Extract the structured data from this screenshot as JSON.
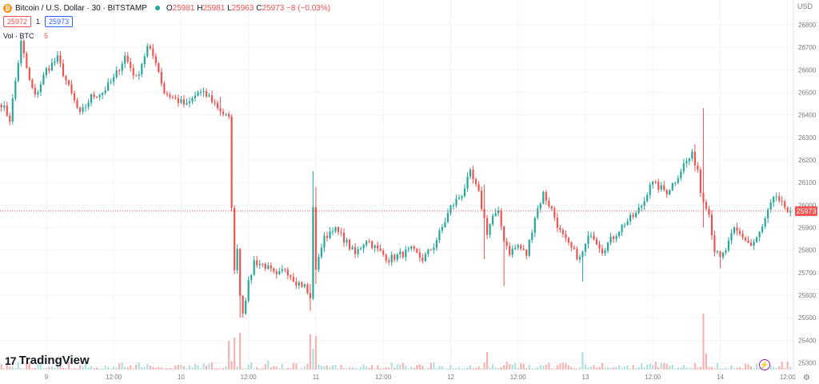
{
  "header": {
    "coin_glyph": "₿",
    "title": "Bitcoin / U.S. Dollar · 30 · BITSTAMP",
    "o_label": "O",
    "o": "25981",
    "h_label": "H",
    "h": "25981",
    "l_label": "L",
    "l": "25963",
    "c_label": "C",
    "c": "25973",
    "change": "−8 (−0.03%)"
  },
  "prices": {
    "sell": "25972",
    "spread": "1",
    "buy": "25973"
  },
  "volume": {
    "label": "Vol · BTC",
    "value": "5"
  },
  "currency": "USD",
  "logo": {
    "mark": "17",
    "text": "TradingView"
  },
  "icons": {
    "flash": "⚡",
    "settings": "⚙"
  },
  "colors": {
    "up": "#26a69a",
    "down": "#ef5350",
    "up_vol": "#b2dfdb",
    "down_vol": "#f7b3b1",
    "last": "#ef5350"
  },
  "chart_data": {
    "type": "candlestick",
    "series": "Bitcoin / U.S. Dollar",
    "interval": "30",
    "exchange": "BITSTAMP",
    "ylim": [
      25270,
      26860
    ],
    "y_ticks": [
      25300,
      25400,
      25500,
      25600,
      25700,
      25800,
      25900,
      26000,
      26100,
      26200,
      26300,
      26400,
      26500,
      26600,
      26700,
      26800
    ],
    "y_tick_labels": [
      "25300",
      "25400",
      "25500",
      "25600",
      "25700",
      "25800",
      "25900",
      "26000",
      "26100",
      "26200",
      "26300",
      "26400",
      "26500",
      "26600",
      "26700",
      "26800"
    ],
    "x_ticks": [
      {
        "bar": 16,
        "label": "9"
      },
      {
        "bar": 40,
        "label": "12:00"
      },
      {
        "bar": 64,
        "label": "10"
      },
      {
        "bar": 88,
        "label": "12:00"
      },
      {
        "bar": 112,
        "label": "11"
      },
      {
        "bar": 136,
        "label": "12:00"
      },
      {
        "bar": 160,
        "label": "12"
      },
      {
        "bar": 184,
        "label": "12:00"
      },
      {
        "bar": 208,
        "label": "13"
      },
      {
        "bar": 232,
        "label": "12:00"
      },
      {
        "bar": 256,
        "label": "14"
      },
      {
        "bar": 280,
        "label": "12:00"
      }
    ],
    "last_price": 25973,
    "last_price_label": "25973",
    "bars_total": 282,
    "anchors": [
      [
        0,
        26450
      ],
      [
        3,
        26380
      ],
      [
        7,
        26720
      ],
      [
        10,
        26550
      ],
      [
        12,
        26480
      ],
      [
        16,
        26600
      ],
      [
        20,
        26650
      ],
      [
        24,
        26520
      ],
      [
        28,
        26400
      ],
      [
        32,
        26480
      ],
      [
        36,
        26500
      ],
      [
        40,
        26560
      ],
      [
        44,
        26660
      ],
      [
        48,
        26560
      ],
      [
        52,
        26700
      ],
      [
        55,
        26640
      ],
      [
        58,
        26500
      ],
      [
        62,
        26470
      ],
      [
        66,
        26440
      ],
      [
        70,
        26500
      ],
      [
        74,
        26480
      ],
      [
        78,
        26420
      ],
      [
        81,
        26380
      ],
      [
        82,
        26000
      ],
      [
        83,
        25700
      ],
      [
        84,
        25820
      ],
      [
        85,
        25600
      ],
      [
        86,
        25530
      ],
      [
        88,
        25650
      ],
      [
        90,
        25750
      ],
      [
        94,
        25730
      ],
      [
        98,
        25680
      ],
      [
        101,
        25720
      ],
      [
        105,
        25660
      ],
      [
        108,
        25640
      ],
      [
        110,
        25580
      ],
      [
        111,
        26000
      ],
      [
        112,
        25700
      ],
      [
        113,
        25780
      ],
      [
        115,
        25850
      ],
      [
        118,
        25900
      ],
      [
        122,
        25850
      ],
      [
        126,
        25780
      ],
      [
        130,
        25850
      ],
      [
        134,
        25800
      ],
      [
        138,
        25760
      ],
      [
        142,
        25780
      ],
      [
        146,
        25800
      ],
      [
        150,
        25760
      ],
      [
        154,
        25820
      ],
      [
        157,
        25900
      ],
      [
        160,
        25990
      ],
      [
        164,
        26050
      ],
      [
        167,
        26140
      ],
      [
        170,
        26050
      ],
      [
        173,
        25880
      ],
      [
        175,
        25950
      ],
      [
        177,
        25960
      ],
      [
        179,
        25850
      ],
      [
        181,
        25790
      ],
      [
        184,
        25820
      ],
      [
        187,
        25780
      ],
      [
        190,
        25950
      ],
      [
        193,
        26050
      ],
      [
        196,
        25980
      ],
      [
        199,
        25880
      ],
      [
        202,
        25820
      ],
      [
        206,
        25760
      ],
      [
        210,
        25880
      ],
      [
        214,
        25800
      ],
      [
        218,
        25860
      ],
      [
        222,
        25920
      ],
      [
        226,
        25960
      ],
      [
        229,
        26020
      ],
      [
        231,
        26100
      ],
      [
        234,
        26080
      ],
      [
        237,
        26060
      ],
      [
        240,
        26110
      ],
      [
        243,
        26180
      ],
      [
        246,
        26220
      ],
      [
        248,
        26160
      ],
      [
        249,
        26060
      ],
      [
        251,
        26000
      ],
      [
        252,
        25960
      ],
      [
        254,
        25800
      ],
      [
        256,
        25760
      ],
      [
        258,
        25800
      ],
      [
        261,
        25890
      ],
      [
        264,
        25860
      ],
      [
        267,
        25820
      ],
      [
        269,
        25850
      ],
      [
        271,
        25900
      ],
      [
        274,
        26000
      ],
      [
        276,
        26040
      ],
      [
        278,
        26000
      ],
      [
        279,
        25973
      ]
    ],
    "spikes": [
      {
        "bar": 78,
        "high": 26480,
        "low": 26440
      },
      {
        "bar": 82,
        "high": 26300,
        "low": 26250
      },
      {
        "bar": 85,
        "high": 25650,
        "low": 25500
      },
      {
        "bar": 110,
        "high": 25650,
        "low": 25530
      },
      {
        "bar": 111,
        "high": 26150,
        "low": 25700
      },
      {
        "bar": 112,
        "high": 26080,
        "low": 25650
      },
      {
        "bar": 172,
        "high": 26090,
        "low": 25760
      },
      {
        "bar": 179,
        "high": 25900,
        "low": 25640
      },
      {
        "bar": 207,
        "high": 25780,
        "low": 25660
      },
      {
        "bar": 247,
        "high": 26270,
        "low": 26150
      },
      {
        "bar": 250,
        "high": 26430,
        "low": 25900
      },
      {
        "bar": 256,
        "high": 25760,
        "low": 25720
      }
    ],
    "volume_max": 5,
    "volume_spikes": [
      {
        "bar": 81,
        "value": 1.8
      },
      {
        "bar": 83,
        "value": 2.0
      },
      {
        "bar": 85,
        "value": 2.3
      },
      {
        "bar": 110,
        "value": 2.2
      },
      {
        "bar": 111,
        "value": 1.3
      },
      {
        "bar": 112,
        "value": 2.1
      },
      {
        "bar": 173,
        "value": 1.1
      },
      {
        "bar": 207,
        "value": 1.1
      },
      {
        "bar": 250,
        "value": 3.5
      },
      {
        "bar": 251,
        "value": 1.0
      }
    ]
  }
}
